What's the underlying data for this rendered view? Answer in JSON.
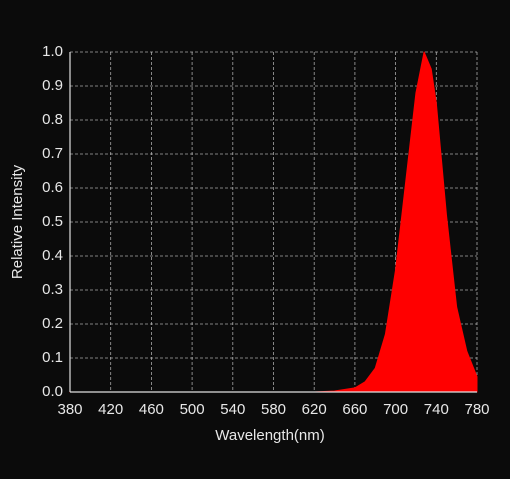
{
  "chart_data": {
    "type": "area",
    "x_label": "Wavelength(nm)",
    "y_label": "Relative Intensity",
    "x": [
      380,
      400,
      420,
      440,
      460,
      480,
      500,
      520,
      540,
      560,
      580,
      600,
      620,
      640,
      660,
      670,
      680,
      690,
      700,
      710,
      720,
      728,
      735,
      740,
      750,
      760,
      770,
      780
    ],
    "values": [
      0,
      0,
      0,
      0,
      0,
      0,
      0,
      0,
      0,
      0,
      0,
      0,
      0,
      0.003,
      0.012,
      0.03,
      0.07,
      0.17,
      0.36,
      0.62,
      0.88,
      1.0,
      0.95,
      0.85,
      0.52,
      0.25,
      0.12,
      0.045
    ],
    "color": "#ff0000",
    "xlim": [
      380,
      780
    ],
    "ylim": [
      0,
      1
    ],
    "xticks": [
      380,
      420,
      460,
      500,
      540,
      580,
      620,
      660,
      700,
      740,
      780
    ],
    "yticks": [
      {
        "value": 0,
        "label": "0.0"
      },
      0.1,
      0.2,
      0.3,
      0.4,
      0.5,
      0.6,
      0.7,
      0.8,
      0.9,
      {
        "value": 1,
        "label": "1.0"
      }
    ],
    "grid": true
  }
}
